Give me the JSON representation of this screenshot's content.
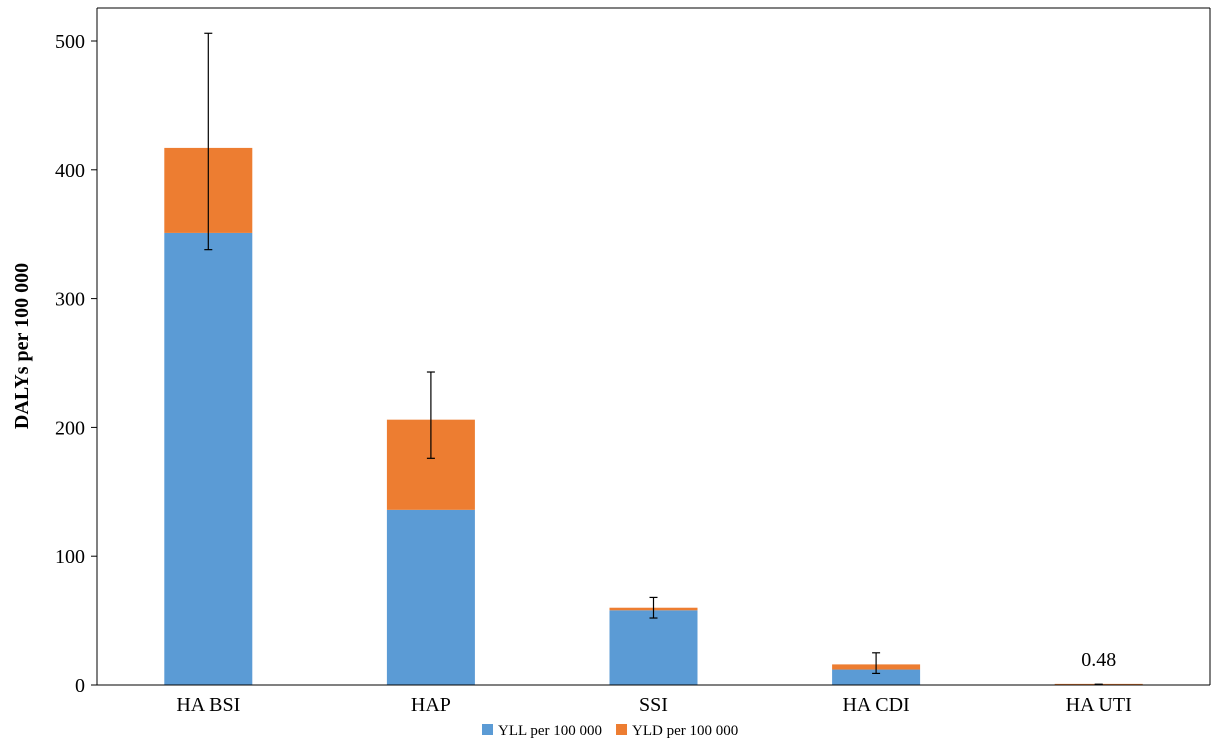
{
  "chart_data": {
    "type": "bar",
    "stacked": true,
    "categories": [
      "HA BSI",
      "HAP",
      "SSI",
      "HA CDI",
      "HA UTI"
    ],
    "series": [
      {
        "name": "YLL per 100 000",
        "color": "#5B9BD5",
        "values": [
          351,
          136,
          58,
          12,
          0.4
        ]
      },
      {
        "name": "YLD per 100 000",
        "color": "#ED7D31",
        "values": [
          66,
          70,
          2,
          4,
          0.08
        ]
      }
    ],
    "error_bars": [
      {
        "low": 338,
        "high": 506
      },
      {
        "low": 176,
        "high": 243
      },
      {
        "low": 52,
        "high": 68
      },
      {
        "low": 9,
        "high": 25
      },
      {
        "low": 0.4,
        "high": 0.6
      }
    ],
    "data_labels": [
      {
        "category": "HA UTI",
        "text": "0.48"
      }
    ],
    "title": "",
    "xlabel": "",
    "ylabel": "DALYs per 100 000",
    "ylim": [
      0,
      500
    ],
    "yticks": [
      0,
      100,
      200,
      300,
      400,
      500
    ],
    "grid": false,
    "legend_position": "bottom"
  }
}
